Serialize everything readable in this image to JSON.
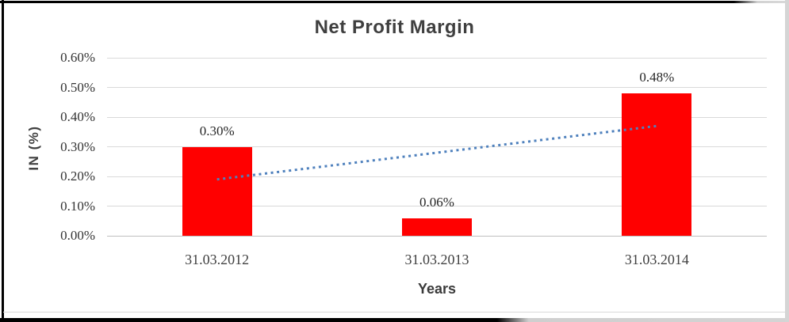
{
  "chart_data": {
    "type": "bar",
    "title": "Net Profit Margin",
    "xlabel": "Years",
    "ylabel": "IN (%)",
    "categories": [
      "31.03.2012",
      "31.03.2013",
      "31.03.2014"
    ],
    "series": [
      {
        "name": "Net Profit Margin",
        "values": [
          0.3,
          0.06,
          0.48
        ]
      }
    ],
    "data_labels": [
      "0.30%",
      "0.06%",
      "0.48%"
    ],
    "y_ticks": [
      "0.60%",
      "0.50%",
      "0.40%",
      "0.30%",
      "0.20%",
      "0.10%",
      "0.00%"
    ],
    "ylim": [
      0,
      0.6
    ],
    "grid": true,
    "legend": "none",
    "plot_bg": "#ffffff",
    "bar_color": "#ff0000",
    "gridline_color": "#d9d9d9",
    "axisline_color": "#bfbfbf",
    "text_color": "#3f3f3f",
    "trendline": {
      "type": "linear",
      "style": "dotted",
      "color": "#4f81bd",
      "start_value": 0.19,
      "end_value": 0.37
    }
  }
}
